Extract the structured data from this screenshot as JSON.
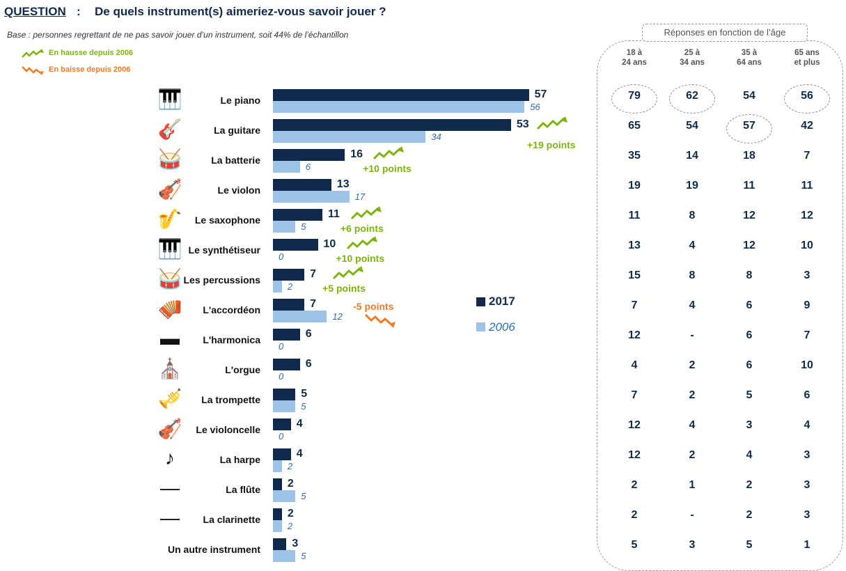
{
  "header": {
    "question_label": "QUESTION",
    "colon": ":",
    "question_text": "De quels instrument(s) aimeriez-vous savoir jouer ?",
    "base_text": "Base : personnes regrettant de ne pas savoir jouer d’un instrument, soit 44% de l’échantillon"
  },
  "trend_legend": {
    "up_label": "En hausse depuis 2006",
    "down_label": "En baisse depuis 2006"
  },
  "colors": {
    "y2017": "#0f2a4a",
    "y2006": "#9dc3e6",
    "up": "#7db30f",
    "down": "#f07a26"
  },
  "chart_data": {
    "type": "bar",
    "orientation": "horizontal",
    "categories": [
      "Le piano",
      "La guitare",
      "La batterie",
      "Le violon",
      "Le saxophone",
      "Le synthétiseur",
      "Les percussions",
      "L'accordéon",
      "L'harmonica",
      "L'orgue",
      "La trompette",
      "Le violoncelle",
      "La harpe",
      "La flûte",
      "La clarinette",
      "Un autre instrument"
    ],
    "series": [
      {
        "name": "2017",
        "values": [
          57,
          53,
          16,
          13,
          11,
          10,
          7,
          7,
          6,
          6,
          5,
          4,
          4,
          2,
          2,
          3
        ]
      },
      {
        "name": "2006",
        "values": [
          56,
          34,
          6,
          17,
          5,
          0,
          2,
          12,
          0,
          0,
          5,
          0,
          2,
          5,
          2,
          5
        ]
      }
    ],
    "icons": [
      "piano-icon",
      "guitar-icon",
      "drums-icon",
      "violin-icon",
      "saxophone-icon",
      "synthesizer-icon",
      "drum-icon",
      "accordion-icon",
      "harmonica-icon",
      "organ-icon",
      "trumpet-icon",
      "cello-icon",
      "harp-icon",
      "flute-icon",
      "clarinet-icon",
      ""
    ],
    "trends": [
      {
        "index": 1,
        "dir": "up",
        "label": "+19 points"
      },
      {
        "index": 2,
        "dir": "up",
        "label": "+10 points"
      },
      {
        "index": 4,
        "dir": "up",
        "label": "+6 points"
      },
      {
        "index": 5,
        "dir": "up",
        "label": "+10 points"
      },
      {
        "index": 6,
        "dir": "up",
        "label": "+5 points"
      },
      {
        "index": 7,
        "dir": "down",
        "label": "-5 points"
      }
    ],
    "legend": [
      "2017",
      "2006"
    ]
  },
  "age_table": {
    "title": "Réponses en fonction de l’âge",
    "headers": [
      [
        "18 à",
        "24 ans"
      ],
      [
        "25 à",
        "34 ans"
      ],
      [
        "35 à",
        "64 ans"
      ],
      [
        "65 ans",
        "et plus"
      ]
    ],
    "rows": [
      [
        "79",
        "62",
        "54",
        "56"
      ],
      [
        "65",
        "54",
        "57",
        "42"
      ],
      [
        "35",
        "14",
        "18",
        "7"
      ],
      [
        "19",
        "19",
        "11",
        "11"
      ],
      [
        "11",
        "8",
        "12",
        "12"
      ],
      [
        "13",
        "4",
        "12",
        "10"
      ],
      [
        "15",
        "8",
        "8",
        "3"
      ],
      [
        "7",
        "4",
        "6",
        "9"
      ],
      [
        "12",
        "-",
        "6",
        "7"
      ],
      [
        "4",
        "2",
        "6",
        "10"
      ],
      [
        "7",
        "2",
        "5",
        "6"
      ],
      [
        "12",
        "4",
        "3",
        "4"
      ],
      [
        "12",
        "2",
        "4",
        "3"
      ],
      [
        "2",
        "1",
        "2",
        "3"
      ],
      [
        "2",
        "-",
        "2",
        "3"
      ],
      [
        "5",
        "3",
        "5",
        "1"
      ]
    ],
    "highlighted": [
      [
        0,
        0
      ],
      [
        0,
        1
      ],
      [
        0,
        3
      ],
      [
        1,
        2
      ]
    ]
  }
}
